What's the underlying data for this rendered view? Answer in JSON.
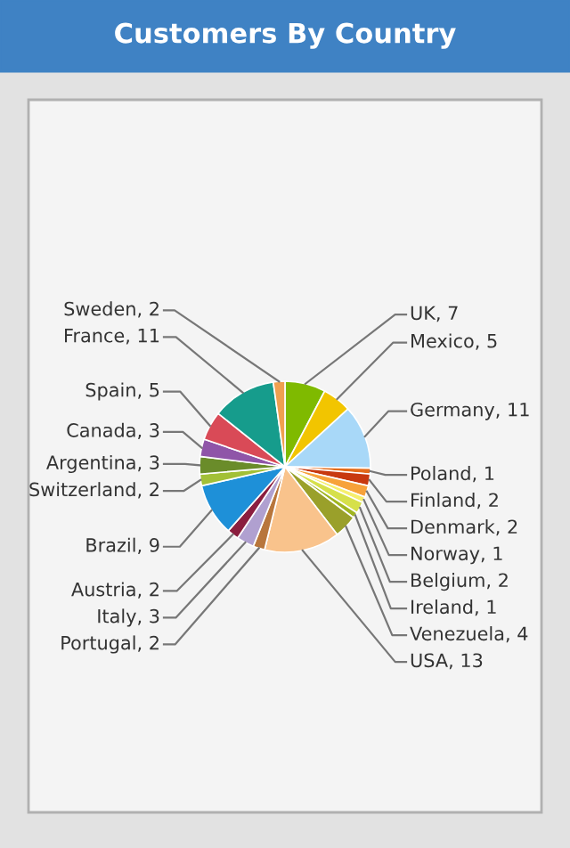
{
  "chart_data": {
    "type": "pie",
    "title": "Customers By Country",
    "categories": [
      "UK",
      "Mexico",
      "Germany",
      "Poland",
      "Finland",
      "Denmark",
      "Norway",
      "Belgium",
      "Ireland",
      "Venezuela",
      "USA",
      "Portugal",
      "Italy",
      "Austria",
      "Brazil",
      "Switzerland",
      "Argentina",
      "Canada",
      "Spain",
      "France",
      "Sweden"
    ],
    "values": [
      7,
      5,
      11,
      1,
      2,
      2,
      1,
      2,
      1,
      4,
      13,
      2,
      3,
      2,
      9,
      2,
      3,
      3,
      5,
      11,
      2
    ],
    "colors": [
      "#7fba00",
      "#f2c500",
      "#a8d8f8",
      "#e46b1a",
      "#c8390f",
      "#f7a23a",
      "#f6ef6d",
      "#d6e04a",
      "#a0b520",
      "#9aa02a",
      "#f9c38c",
      "#b8763c",
      "#b0a0d0",
      "#8b1e3f",
      "#1e90d8",
      "#a2c037",
      "#6a8c2a",
      "#8f55a8",
      "#d94a57",
      "#169c8c",
      "#f0a050"
    ],
    "value_labels": [
      ", 7",
      ", 5",
      ", 11",
      ", 1",
      ", 2",
      ", 2",
      ", 1",
      ", 2",
      ", 1",
      ", 4",
      ", 13",
      ", 2",
      ", 3",
      ", 2",
      ", 9",
      ", 2",
      ", 3",
      ", 3",
      ", 5",
      ", 11",
      ", 2"
    ],
    "legend": false
  }
}
